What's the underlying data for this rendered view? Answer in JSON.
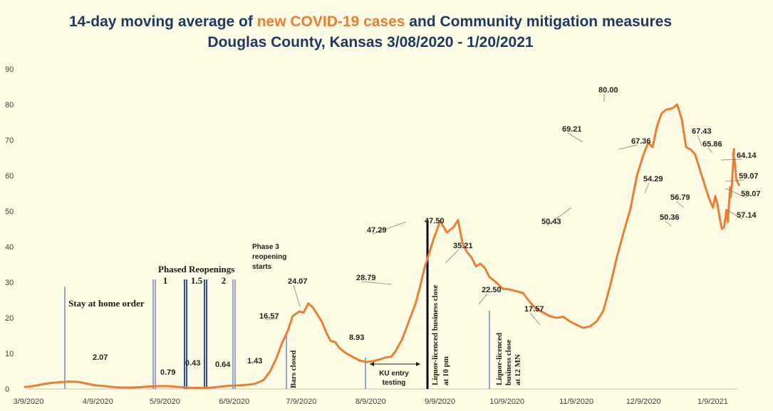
{
  "chart_data": {
    "type": "line",
    "title_line1_pre": "14-day moving average of ",
    "title_line1_hl": "new COVID-19 cases",
    "title_line1_post": " and Community mitigation measures",
    "title_line2": "Douglas County, Kansas 3/08/2020 - 1/20/2021",
    "xlabel": "",
    "ylabel": "",
    "ylim": [
      0,
      90
    ],
    "yticks": [
      "0",
      "10",
      "20",
      "30",
      "40",
      "50",
      "60",
      "70",
      "80",
      "90"
    ],
    "x_start": "2020-03-09",
    "x_end": "2021-01-20",
    "xticks": [
      {
        "date": "2020-03-09",
        "label": "3/9/2020"
      },
      {
        "date": "2020-04-09",
        "label": "4/9/2020"
      },
      {
        "date": "2020-05-09",
        "label": "5/9/2020"
      },
      {
        "date": "2020-06-09",
        "label": "6/9/2020"
      },
      {
        "date": "2020-07-09",
        "label": "7/9/2020"
      },
      {
        "date": "2020-08-09",
        "label": "8/9/2020"
      },
      {
        "date": "2020-09-09",
        "label": "9/9/2020"
      },
      {
        "date": "2020-10-09",
        "label": "10/9/2020"
      },
      {
        "date": "2020-11-09",
        "label": "11/9/2020"
      },
      {
        "date": "2020-12-09",
        "label": "12/9/2020"
      },
      {
        "date": "2021-01-09",
        "label": "1/9/2021"
      }
    ],
    "grid": false,
    "line_color": "#ed7d31",
    "series": [
      {
        "points": [
          [
            "2020-03-09",
            0.5
          ],
          [
            "2020-03-13",
            0.8
          ],
          [
            "2020-03-17",
            1.3
          ],
          [
            "2020-03-21",
            1.7
          ],
          [
            "2020-03-25",
            1.9
          ],
          [
            "2020-03-29",
            2.07
          ],
          [
            "2020-04-02",
            2.0
          ],
          [
            "2020-04-06",
            1.5
          ],
          [
            "2020-04-10",
            1.0
          ],
          [
            "2020-04-14",
            0.8
          ],
          [
            "2020-04-18",
            0.5
          ],
          [
            "2020-04-22",
            0.4
          ],
          [
            "2020-04-26",
            0.4
          ],
          [
            "2020-04-30",
            0.5
          ],
          [
            "2020-05-04",
            0.7
          ],
          [
            "2020-05-08",
            0.79
          ],
          [
            "2020-05-12",
            0.8
          ],
          [
            "2020-05-16",
            0.6
          ],
          [
            "2020-05-20",
            0.43
          ],
          [
            "2020-05-24",
            0.3
          ],
          [
            "2020-05-28",
            0.3
          ],
          [
            "2020-06-01",
            0.4
          ],
          [
            "2020-06-05",
            0.64
          ],
          [
            "2020-06-09",
            0.9
          ],
          [
            "2020-06-13",
            1.0
          ],
          [
            "2020-06-17",
            1.2
          ],
          [
            "2020-06-20",
            1.43
          ],
          [
            "2020-06-24",
            2.5
          ],
          [
            "2020-06-27",
            5.0
          ],
          [
            "2020-06-30",
            9.0
          ],
          [
            "2020-07-02",
            12.5
          ],
          [
            "2020-07-05",
            16.57
          ],
          [
            "2020-07-07",
            20.5
          ],
          [
            "2020-07-10",
            21.8
          ],
          [
            "2020-07-12",
            21.5
          ],
          [
            "2020-07-14",
            24.07
          ],
          [
            "2020-07-16",
            23.0
          ],
          [
            "2020-07-18",
            21.0
          ],
          [
            "2020-07-20",
            19.0
          ],
          [
            "2020-07-22",
            16.0
          ],
          [
            "2020-07-24",
            13.5
          ],
          [
            "2020-07-26",
            13.2
          ],
          [
            "2020-07-28",
            11.5
          ],
          [
            "2020-07-31",
            10.0
          ],
          [
            "2020-08-03",
            9.0
          ],
          [
            "2020-08-06",
            8.0
          ],
          [
            "2020-08-09",
            7.6
          ],
          [
            "2020-08-12",
            7.8
          ],
          [
            "2020-08-15",
            8.3
          ],
          [
            "2020-08-18",
            8.93
          ],
          [
            "2020-08-20",
            9.0
          ],
          [
            "2020-08-22",
            10.5
          ],
          [
            "2020-08-25",
            14.0
          ],
          [
            "2020-08-28",
            19.0
          ],
          [
            "2020-08-31",
            24.0
          ],
          [
            "2020-09-02",
            28.79
          ],
          [
            "2020-09-04",
            34.0
          ],
          [
            "2020-09-06",
            38.0
          ],
          [
            "2020-09-08",
            42.0
          ],
          [
            "2020-09-11",
            47.29
          ],
          [
            "2020-09-14",
            44.0
          ],
          [
            "2020-09-17",
            45.5
          ],
          [
            "2020-09-19",
            47.5
          ],
          [
            "2020-09-21",
            41.0
          ],
          [
            "2020-09-23",
            38.5
          ],
          [
            "2020-09-25",
            37.0
          ],
          [
            "2020-09-27",
            34.5
          ],
          [
            "2020-09-29",
            35.21
          ],
          [
            "2020-10-01",
            34.0
          ],
          [
            "2020-10-03",
            31.5
          ],
          [
            "2020-10-06",
            30.0
          ],
          [
            "2020-10-09",
            28.2
          ],
          [
            "2020-10-12",
            28.0
          ],
          [
            "2020-10-15",
            27.5
          ],
          [
            "2020-10-18",
            27.0
          ],
          [
            "2020-10-21",
            24.5
          ],
          [
            "2020-10-24",
            22.5
          ],
          [
            "2020-10-27",
            21.5
          ],
          [
            "2020-10-30",
            20.5
          ],
          [
            "2020-11-02",
            20.0
          ],
          [
            "2020-11-05",
            20.3
          ],
          [
            "2020-11-08",
            19.0
          ],
          [
            "2020-11-11",
            18.0
          ],
          [
            "2020-11-14",
            17.2
          ],
          [
            "2020-11-17",
            17.57
          ],
          [
            "2020-11-20",
            19.0
          ],
          [
            "2020-11-23",
            22.0
          ],
          [
            "2020-11-26",
            29.0
          ],
          [
            "2020-11-29",
            37.0
          ],
          [
            "2020-12-02",
            44.0
          ],
          [
            "2020-12-05",
            50.43
          ],
          [
            "2020-12-08",
            60.0
          ],
          [
            "2020-12-11",
            66.0
          ],
          [
            "2020-12-13",
            69.21
          ],
          [
            "2020-12-15",
            68.0
          ],
          [
            "2020-12-17",
            74.0
          ],
          [
            "2020-12-19",
            77.5
          ],
          [
            "2020-12-21",
            78.5
          ],
          [
            "2020-12-24",
            79.0
          ],
          [
            "2020-12-26",
            80.0
          ],
          [
            "2020-12-28",
            76.0
          ],
          [
            "2020-12-30",
            68.0
          ],
          [
            "2021-01-01",
            67.36
          ],
          [
            "2021-01-03",
            66.0
          ],
          [
            "2021-01-05",
            62.0
          ],
          [
            "2021-01-07",
            58.0
          ],
          [
            "2021-01-09",
            54.0
          ],
          [
            "2021-01-11",
            51.0
          ],
          [
            "2021-01-12",
            54.29
          ],
          [
            "2021-01-13",
            52.0
          ],
          [
            "2021-01-14",
            48.0
          ],
          [
            "2021-01-15",
            45.0
          ],
          [
            "2021-01-16",
            45.5
          ],
          [
            "2021-01-17",
            50.36
          ],
          [
            "2021-01-17",
            47.0
          ],
          [
            "2021-01-18",
            50.0
          ],
          [
            "2021-01-18",
            56.79
          ],
          [
            "2021-01-19",
            54.0
          ],
          [
            "2021-01-19",
            60.0
          ],
          [
            "2021-01-19",
            67.43
          ],
          [
            "2021-01-20",
            65.86
          ],
          [
            "2021-01-20",
            64.14
          ],
          [
            "2021-01-20",
            59.07
          ],
          [
            "2021-01-20",
            58.07
          ],
          [
            "2021-01-20",
            57.14
          ]
        ]
      }
    ],
    "data_labels": [
      {
        "text": "2.07"
      },
      {
        "text": "0.79"
      },
      {
        "text": "0.43"
      },
      {
        "text": "0.64"
      },
      {
        "text": "1.43"
      },
      {
        "text": "16.57"
      },
      {
        "text": "24.07"
      },
      {
        "text": "8.93"
      },
      {
        "text": "28.79"
      },
      {
        "text": "47.29"
      },
      {
        "text": "47.50"
      },
      {
        "text": "35.21"
      },
      {
        "text": "22.50"
      },
      {
        "text": "17.57"
      },
      {
        "text": "50.43"
      },
      {
        "text": "69.21"
      },
      {
        "text": "80.00"
      },
      {
        "text": "67.36"
      },
      {
        "text": "54.29"
      },
      {
        "text": "50.36"
      },
      {
        "text": "56.79"
      },
      {
        "text": "67.43"
      },
      {
        "text": "65.86"
      },
      {
        "text": "64.14"
      },
      {
        "text": "59.07"
      },
      {
        "text": "58.07"
      },
      {
        "text": "57.14"
      }
    ],
    "annotations": {
      "stay_home": "Stay at home order",
      "phased_reopenings": "Phased Reopenings",
      "phase_1": "1",
      "phase_15": "1.5",
      "phase_2": "2",
      "phase3_line1": "Phase 3",
      "phase3_line2": "reopening",
      "phase3_line3": "starts",
      "bars_closed": "Bars closed",
      "ku_line1": "KU entry",
      "ku_line2": "testing",
      "liquor_10pm_line1": "Liquor-licenced  business close",
      "liquor_10pm_line2": "at 10 pm",
      "liquor_12mn_line1": "Liquor-licenced",
      "liquor_12mn_line2": "business close",
      "liquor_12mn_line3": "at 12 MN"
    }
  }
}
